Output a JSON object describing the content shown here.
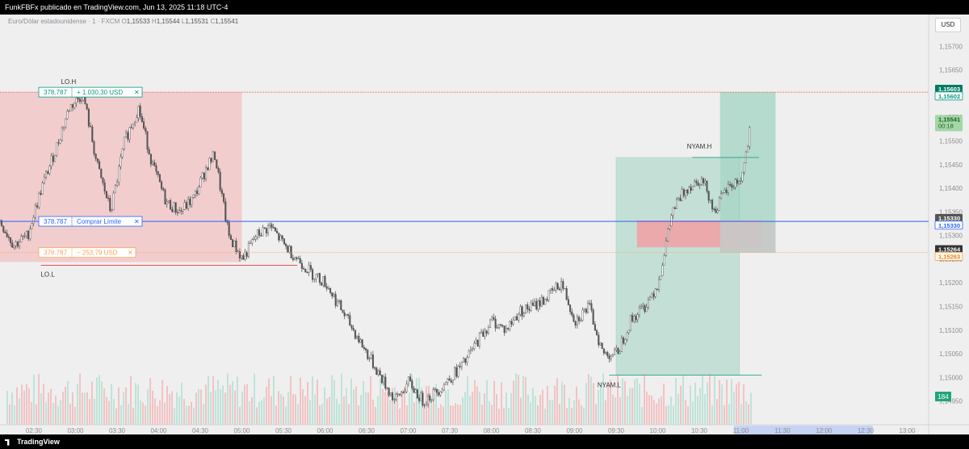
{
  "header": {
    "publisher_line": "FunkFBFx publicado en TradingView.com, Jun 13, 2025 11:18 UTC-4"
  },
  "legend": {
    "symbol": "Euro/Dólar estadounidense · 1 · FXCM",
    "o_label": "O",
    "o_value": "1,15533",
    "h_label": "H",
    "h_value": "1,15544",
    "l_label": "L",
    "l_value": "1,15531",
    "c_label": "C",
    "c_value": "1,15541"
  },
  "currency_button": "USD",
  "footer": {
    "brand": "TradingView"
  },
  "colors": {
    "background": "#efefef",
    "bull": "#ffffff",
    "bear": "#555555",
    "stop_zone": "#f2c7c8",
    "target_zone": "#a9d7c7",
    "limit_line": "#2962ff",
    "stop_line": "#e53935",
    "target_line": "#089981",
    "pending_line": "#f5a35b",
    "fvg_zone": "#f0a3a6",
    "range_zone": "#c8c8c8"
  },
  "chart_data": {
    "type": "candlestick",
    "symbol": "EURUSD",
    "timeframe": "1",
    "ylim": [
      1.149,
      1.1575
    ],
    "y_ticks": [
      "1,14900",
      "1,14950",
      "1,15000",
      "1,15050",
      "1,15100",
      "1,15150",
      "1,15200",
      "1,15250",
      "1,15300",
      "1,15350",
      "1,15400",
      "1,15450",
      "1,15500",
      "1,15550",
      "1,15600",
      "1,15650",
      "1,15700"
    ],
    "x_ticks": [
      "02:30",
      "03:00",
      "03:30",
      "04:00",
      "04:30",
      "05:00",
      "05:30",
      "06:00",
      "06:30",
      "07:00",
      "07:30",
      "08:00",
      "08:30",
      "09:00",
      "09:30",
      "10:00",
      "10:30",
      "11:00",
      "11:30",
      "12:00",
      "12:30",
      "13:00"
    ],
    "x_ticks_future": [
      "11:00",
      "11:30",
      "12:00",
      "12:30"
    ],
    "close_path": [
      [
        "02:05",
        1.1533
      ],
      [
        "02:15",
        1.1528
      ],
      [
        "02:25",
        1.153
      ],
      [
        "02:35",
        1.154
      ],
      [
        "02:45",
        1.1548
      ],
      [
        "02:55",
        1.1557
      ],
      [
        "03:05",
        1.156
      ],
      [
        "03:15",
        1.1545
      ],
      [
        "03:25",
        1.1535
      ],
      [
        "03:35",
        1.155
      ],
      [
        "03:45",
        1.1557
      ],
      [
        "03:55",
        1.1545
      ],
      [
        "04:05",
        1.1537
      ],
      [
        "04:15",
        1.1535
      ],
      [
        "04:25",
        1.1538
      ],
      [
        "04:35",
        1.1545
      ],
      [
        "04:40",
        1.1547
      ],
      [
        "04:50",
        1.153
      ],
      [
        "05:00",
        1.1525
      ],
      [
        "05:10",
        1.153
      ],
      [
        "05:20",
        1.1532
      ],
      [
        "05:30",
        1.1528
      ],
      [
        "05:40",
        1.1525
      ],
      [
        "05:50",
        1.1522
      ],
      [
        "06:00",
        1.152
      ],
      [
        "06:10",
        1.1515
      ],
      [
        "06:20",
        1.151
      ],
      [
        "06:30",
        1.1505
      ],
      [
        "06:40",
        1.15
      ],
      [
        "06:50",
        1.1495
      ],
      [
        "07:00",
        1.1499
      ],
      [
        "07:10",
        1.1495
      ],
      [
        "07:20",
        1.1497
      ],
      [
        "07:30",
        1.15
      ],
      [
        "07:40",
        1.1503
      ],
      [
        "07:50",
        1.1508
      ],
      [
        "08:00",
        1.1512
      ],
      [
        "08:10",
        1.151
      ],
      [
        "08:20",
        1.1514
      ],
      [
        "08:30",
        1.1515
      ],
      [
        "08:40",
        1.1517
      ],
      [
        "08:50",
        1.152
      ],
      [
        "09:00",
        1.1512
      ],
      [
        "09:10",
        1.1515
      ],
      [
        "09:20",
        1.1505
      ],
      [
        "09:30",
        1.1505
      ],
      [
        "09:40",
        1.1512
      ],
      [
        "09:50",
        1.1515
      ],
      [
        "10:00",
        1.152
      ],
      [
        "10:10",
        1.1535
      ],
      [
        "10:20",
        1.154
      ],
      [
        "10:30",
        1.1542
      ],
      [
        "10:35",
        1.154
      ],
      [
        "10:40",
        1.1535
      ],
      [
        "10:50",
        1.154
      ],
      [
        "11:00",
        1.1542
      ],
      [
        "11:05",
        1.155
      ],
      [
        "11:07",
        1.1554
      ]
    ],
    "position": {
      "type": "long",
      "entry": 1.1533,
      "target": 1.15603,
      "stop": 1.15264,
      "quantity": "378.787",
      "target_label": "+ 1.030,30 USD",
      "order_label": "Comprar Límite",
      "stop_label": "− 253,79 USD"
    },
    "annotations": [
      "LO.H",
      "LO.L",
      "NYAM.H",
      "NYAM.L"
    ],
    "price_labels": [
      {
        "value": "1,15603",
        "kind": "target"
      },
      {
        "value": "1,15602",
        "kind": "target-outline"
      },
      {
        "value": "1,15541",
        "kind": "last"
      },
      {
        "value": "00:18",
        "kind": "countdown"
      },
      {
        "value": "1,15330",
        "kind": "entry"
      },
      {
        "value": "1,15330",
        "kind": "entry-outline"
      },
      {
        "value": "1,15264",
        "kind": "stop"
      },
      {
        "value": "1,15263",
        "kind": "stop-outline"
      }
    ],
    "volume_badge": "184",
    "grid": true
  }
}
